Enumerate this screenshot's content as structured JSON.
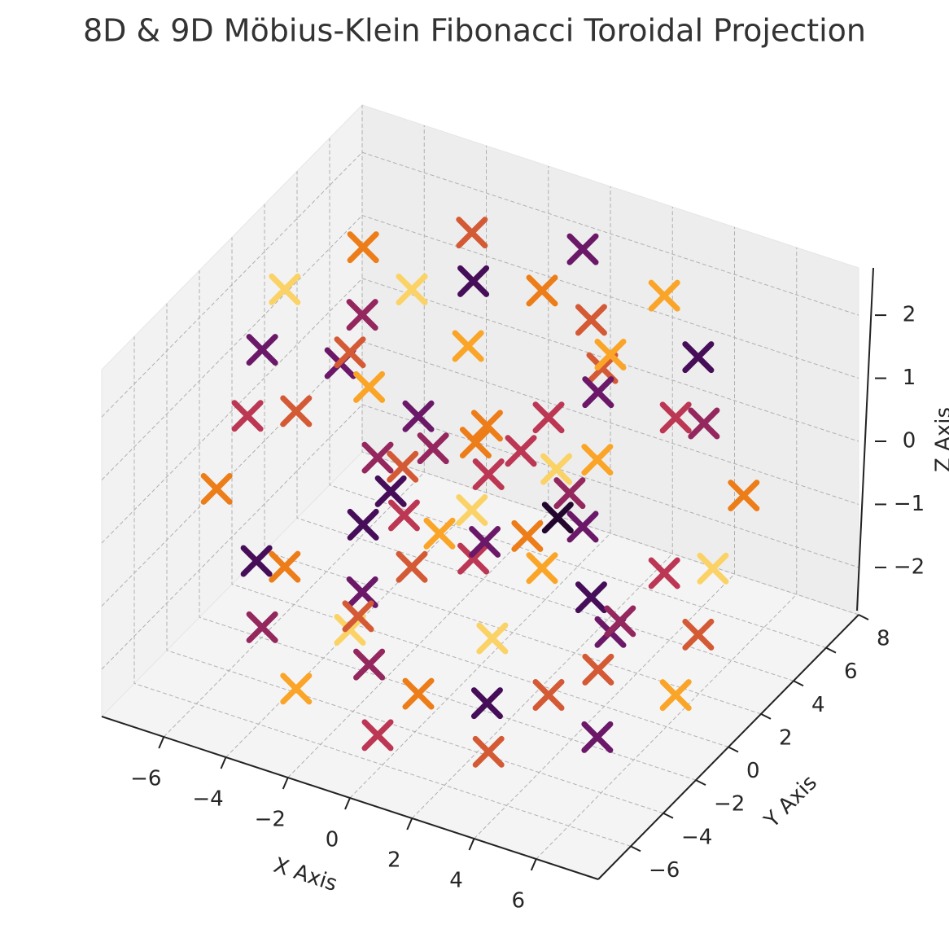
{
  "chart_data": {
    "type": "scatter3d",
    "title": "8D & 9D Möbius-Klein Fibonacci Toroidal Projection",
    "xlabel": "X Axis",
    "ylabel": "Y Axis",
    "zlabel": "Z Axis",
    "colormap": "inferno",
    "grid": true,
    "xlim": [
      -8,
      8
    ],
    "ylim": [
      -8,
      8
    ],
    "zlim": [
      -2.75,
      2.75
    ],
    "xticks": [
      {
        "value": -6,
        "label": "−6"
      },
      {
        "value": -4,
        "label": "−4"
      },
      {
        "value": -2,
        "label": "−2"
      },
      0,
      2,
      4,
      6
    ],
    "yticks": [
      {
        "value": -6,
        "label": "−6"
      },
      {
        "value": -4,
        "label": "−4"
      },
      {
        "value": -2,
        "label": "−2"
      },
      0,
      2,
      4,
      6,
      8
    ],
    "zticks": [
      {
        "value": -2,
        "label": "−2"
      },
      {
        "value": -1,
        "label": "−1"
      },
      0,
      1,
      2
    ],
    "x": [
      7.5,
      6.3,
      3.8,
      2.5,
      3.8,
      6.3,
      6.5,
      5.4,
      3.2,
      2.2,
      3.2,
      5.4,
      3.8,
      3.1,
      1.9,
      1.3,
      1.9,
      3.1,
      0,
      0,
      0,
      0,
      0,
      0,
      -3.8,
      -3.1,
      -1.9,
      -1.3,
      -1.9,
      -3.1,
      -6.5,
      -5.4,
      -3.2,
      -2.2,
      -3.2,
      -5.4,
      -7.5,
      -6.3,
      -3.8,
      -2.5,
      -3.8,
      -6.3,
      -6.5,
      -5.4,
      -3.2,
      -2.2,
      -3.2,
      -5.4,
      -3.8,
      -3.1,
      -1.9,
      -1.3,
      -1.9,
      -3.1,
      0,
      0,
      0,
      0,
      0,
      0,
      3.8,
      3.1,
      1.9,
      1.3,
      1.9,
      3.1,
      6.5,
      5.4,
      3.2,
      2.2,
      3.2,
      5.4
    ],
    "y": [
      0,
      0,
      0,
      0,
      0,
      0,
      3.8,
      3.1,
      1.9,
      1.3,
      1.9,
      3.1,
      6.5,
      5.4,
      3.2,
      2.2,
      3.2,
      5.4,
      7.5,
      6.3,
      3.8,
      2.5,
      3.8,
      6.3,
      6.5,
      5.4,
      3.2,
      2.2,
      3.2,
      5.4,
      3.8,
      3.1,
      1.9,
      1.3,
      1.9,
      3.1,
      0,
      0,
      0,
      0,
      0,
      0,
      -3.8,
      -3.1,
      -1.9,
      -1.3,
      -1.9,
      -3.1,
      -6.5,
      -5.4,
      -3.2,
      -2.2,
      -3.2,
      -5.4,
      -7.5,
      -6.3,
      -3.8,
      -2.5,
      -3.8,
      -6.3,
      -6.5,
      -5.4,
      -3.2,
      -2.2,
      -3.2,
      -5.4,
      -3.8,
      -3.1,
      -1.9,
      -1.3,
      -1.9,
      -3.1
    ],
    "z": [
      0,
      2.2,
      2.2,
      0,
      -2.2,
      -2.2,
      0,
      2.2,
      2.2,
      0,
      -2.2,
      -2.2,
      0,
      2.2,
      2.2,
      0,
      -2.2,
      -2.2,
      0,
      2.2,
      2.2,
      0,
      -2.2,
      -2.2,
      0,
      2.2,
      2.2,
      0,
      -2.2,
      -2.2,
      0,
      2.2,
      2.2,
      0,
      -2.2,
      -2.2,
      0,
      2.2,
      2.2,
      0,
      -2.2,
      -2.2,
      0,
      2.2,
      2.2,
      0,
      -2.2,
      -2.2,
      0,
      2.2,
      2.2,
      0,
      -2.2,
      -2.2,
      0,
      2.2,
      2.2,
      0,
      -2.2,
      -2.2,
      0,
      2.2,
      2.2,
      0,
      -2.2,
      -2.2,
      0,
      2.2,
      2.2,
      0,
      -2.2,
      -2.2
    ],
    "c": [
      0.9,
      0.5,
      0.3,
      0.1,
      0.6,
      0.8,
      0.7,
      0.2,
      0.8,
      0.4,
      0.3,
      0.6,
      0.4,
      0.8,
      0.6,
      0.9,
      0.2,
      0.5,
      0.6,
      0.3,
      0.7,
      0.5,
      0.8,
      0.3,
      0.8,
      0.6,
      0.2,
      0.7,
      0.5,
      0.9,
      0.3,
      0.7,
      0.9,
      0.4,
      0.6,
      0.2,
      0.5,
      0.9,
      0.4,
      0.6,
      0.3,
      0.7,
      0.7,
      0.3,
      0.6,
      0.2,
      0.9,
      0.4,
      0.2,
      0.6,
      0.8,
      0.5,
      0.4,
      0.8,
      0.6,
      0.4,
      0.3,
      0.8,
      0.7,
      0.5,
      0.9,
      0.5,
      0.7,
      0.3,
      0.2,
      0.6,
      0.4,
      0.8,
      0.5,
      0.7,
      0.6,
      0.3
    ]
  }
}
